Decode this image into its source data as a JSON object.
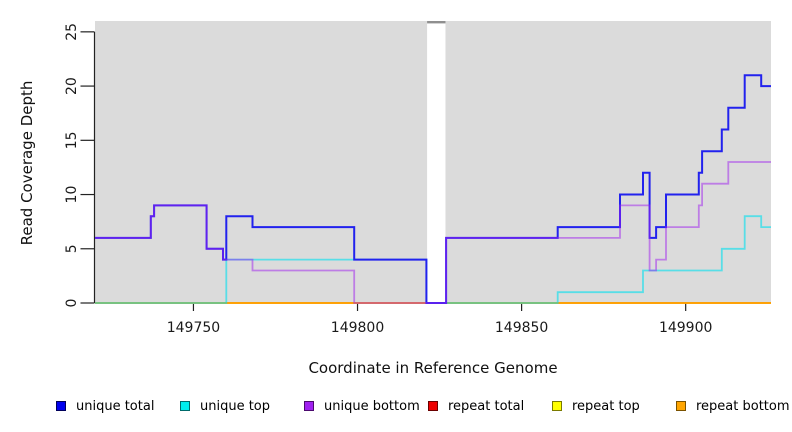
{
  "figure": {
    "plot_background": "#DBDBDB",
    "page_background": "#FFFFFF",
    "axis_color": "#222222",
    "tick_label_color": "#1a1a1a",
    "gap_region": {
      "x_start": 149821.2,
      "x_end": 149826.8,
      "fill": "#FFFFFF",
      "top_cap_color": "#8F8F8F"
    }
  },
  "axes": {
    "x": {
      "label": "Coordinate in Reference Genome",
      "range": [
        149720,
        149926
      ],
      "ticks": [
        149750,
        149800,
        149850,
        149900
      ],
      "tick_labels": [
        "149750",
        "149800",
        "149850",
        "149900"
      ]
    },
    "y": {
      "label": "Read Coverage Depth",
      "range": [
        0,
        26
      ],
      "ticks": [
        0,
        5,
        10,
        15,
        20,
        25
      ],
      "tick_labels": [
        "0",
        "5",
        "10",
        "15",
        "20",
        "25"
      ]
    }
  },
  "chart_data": {
    "type": "step-line",
    "step_mode": "after",
    "x_axis": "genome coordinate",
    "y_axis": "read coverage depth",
    "series": [
      {
        "name": "unique-total",
        "label": "unique total",
        "line_color": "#2222EE",
        "swatch_fill": "#0000EE",
        "swatch_border": "#00005A",
        "width": 2,
        "opacity": 1,
        "z": 5,
        "points": [
          [
            149720,
            6
          ],
          [
            149737,
            8
          ],
          [
            149738,
            9
          ],
          [
            149754,
            5
          ],
          [
            149759,
            4
          ],
          [
            149760,
            8
          ],
          [
            149768,
            7
          ],
          [
            149799,
            4
          ],
          [
            149821,
            0
          ],
          [
            149827,
            6
          ],
          [
            149861,
            7
          ],
          [
            149880,
            10
          ],
          [
            149887,
            12
          ],
          [
            149889,
            6
          ],
          [
            149891,
            7
          ],
          [
            149894,
            10
          ],
          [
            149904,
            12
          ],
          [
            149905,
            14
          ],
          [
            149911,
            16
          ],
          [
            149913,
            18
          ],
          [
            149918,
            21
          ],
          [
            149923,
            20
          ]
        ]
      },
      {
        "name": "unique-top",
        "label": "unique top",
        "line_color": "#00E0EE",
        "swatch_fill": "#00EEEE",
        "swatch_border": "#006A6A",
        "width": 1.8,
        "opacity": 0.6,
        "z": 4,
        "points": [
          [
            149720,
            0
          ],
          [
            149760,
            4
          ],
          [
            149821,
            0
          ],
          [
            149861,
            1
          ],
          [
            149887,
            3
          ],
          [
            149911,
            5
          ],
          [
            149918,
            8
          ],
          [
            149923,
            7
          ]
        ]
      },
      {
        "name": "unique-bottom",
        "label": "unique bottom",
        "line_color": "#A020F0",
        "swatch_fill": "#A020F0",
        "swatch_border": "#4B0A6E",
        "width": 1.8,
        "opacity": 0.5,
        "z": 6,
        "points": [
          [
            149720,
            6
          ],
          [
            149737,
            8
          ],
          [
            149738,
            9
          ],
          [
            149754,
            5
          ],
          [
            149759,
            4
          ],
          [
            149768,
            3
          ],
          [
            149799,
            0
          ],
          [
            149827,
            6
          ],
          [
            149880,
            9
          ],
          [
            149889,
            3
          ],
          [
            149891,
            4
          ],
          [
            149894,
            7
          ],
          [
            149904,
            9
          ],
          [
            149905,
            11
          ],
          [
            149913,
            13
          ]
        ]
      },
      {
        "name": "repeat-total",
        "label": "repeat total",
        "line_color": "#EE0000",
        "swatch_fill": "#EE0000",
        "swatch_border": "#6A0000",
        "width": 1.5,
        "opacity": 1,
        "z": 1,
        "points": [
          [
            149720,
            0
          ]
        ]
      },
      {
        "name": "repeat-top",
        "label": "repeat top",
        "line_color": "#EEEE00",
        "swatch_fill": "#FFFF00",
        "swatch_border": "#7A7A00",
        "width": 1.5,
        "opacity": 1,
        "z": 2,
        "points": [
          [
            149720,
            0
          ]
        ]
      },
      {
        "name": "repeat-bottom",
        "label": "repeat bottom",
        "line_color": "#FF9F00",
        "swatch_fill": "#FFA500",
        "swatch_border": "#7A5200",
        "width": 1.8,
        "opacity": 1,
        "z": 3,
        "points": [
          [
            149720,
            0
          ]
        ]
      }
    ]
  },
  "legend": {
    "order": [
      "unique-total",
      "unique-top",
      "unique-bottom",
      "repeat-total",
      "repeat-top",
      "repeat-bottom"
    ]
  }
}
